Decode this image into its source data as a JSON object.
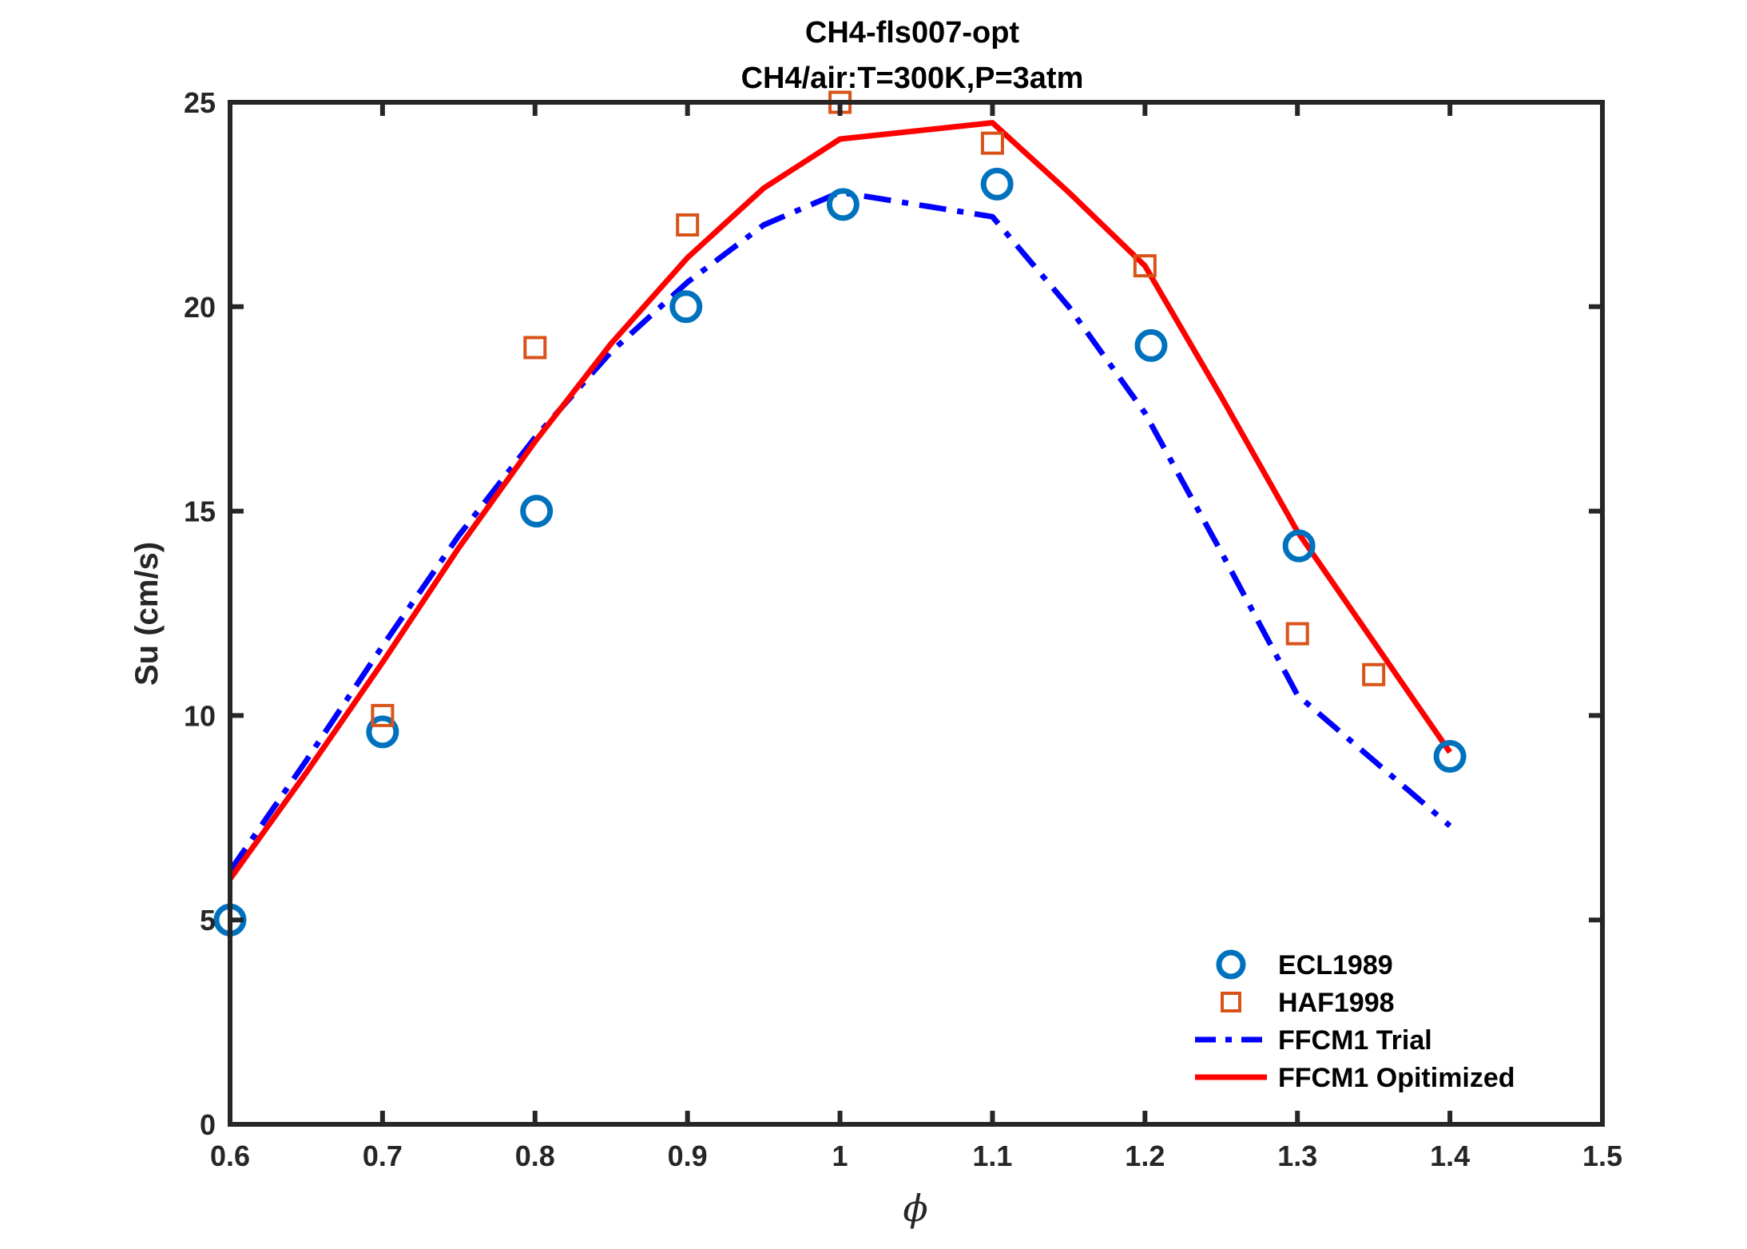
{
  "chart_data": {
    "type": "line",
    "title": "CH4-fls007-opt",
    "subtitle": "CH4/air:T=300K,P=3atm",
    "xlabel": "ϕ",
    "ylabel": "Su (cm/s)",
    "xlim": [
      0.6,
      1.5
    ],
    "ylim": [
      0,
      25
    ],
    "xticks": [
      0.6,
      0.7,
      0.8,
      0.9,
      1,
      1.1,
      1.2,
      1.3,
      1.4,
      1.5
    ],
    "xtick_labels": [
      "0.6",
      "0.7",
      "0.8",
      "0.9",
      "1",
      "1.1",
      "1.2",
      "1.3",
      "1.4",
      "1.5"
    ],
    "yticks": [
      0,
      5,
      10,
      15,
      20,
      25
    ],
    "ytick_labels": [
      "0",
      "5",
      "10",
      "15",
      "20",
      "25"
    ],
    "grid": false,
    "legend_position": "bottom-right",
    "series": [
      {
        "name": "ECL1989",
        "kind": "marker",
        "marker": "circle",
        "color": "#0072BD",
        "x": [
          0.6,
          0.7,
          0.801,
          0.899,
          1.002,
          1.103,
          1.204,
          1.301,
          1.4
        ],
        "y": [
          5.0,
          9.6,
          15.0,
          20.0,
          22.5,
          23.0,
          19.05,
          14.15,
          9.0
        ]
      },
      {
        "name": "HAF1998",
        "kind": "marker",
        "marker": "square",
        "color": "#D95319",
        "x": [
          0.7,
          0.8,
          0.9,
          1.0,
          1.1,
          1.2,
          1.3,
          1.35
        ],
        "y": [
          10.0,
          19.0,
          22.0,
          25.0,
          24.0,
          21.0,
          12.0,
          11.0
        ]
      },
      {
        "name": "FFCM1 Trial",
        "kind": "line",
        "dash": "dashdot",
        "color": "#0000FF",
        "x": [
          0.6,
          0.65,
          0.7,
          0.75,
          0.8,
          0.85,
          0.9,
          0.95,
          1.0,
          1.05,
          1.1,
          1.15,
          1.2,
          1.25,
          1.3,
          1.35,
          1.4
        ],
        "y": [
          6.2,
          8.9,
          11.7,
          14.4,
          16.8,
          18.9,
          20.6,
          22.0,
          22.8,
          22.5,
          22.2,
          20.0,
          17.4,
          14.0,
          10.5,
          8.9,
          7.3
        ]
      },
      {
        "name": "FFCM1 Opitimized",
        "kind": "line",
        "dash": "solid",
        "color": "#FF0000",
        "x": [
          0.6,
          0.65,
          0.7,
          0.75,
          0.8,
          0.85,
          0.9,
          0.95,
          1.0,
          1.05,
          1.1,
          1.15,
          1.2,
          1.25,
          1.3,
          1.35,
          1.4
        ],
        "y": [
          6.0,
          8.6,
          11.3,
          14.1,
          16.7,
          19.1,
          21.2,
          22.9,
          24.1,
          24.3,
          24.5,
          22.8,
          21.0,
          17.8,
          14.5,
          11.8,
          9.1
        ]
      }
    ]
  }
}
